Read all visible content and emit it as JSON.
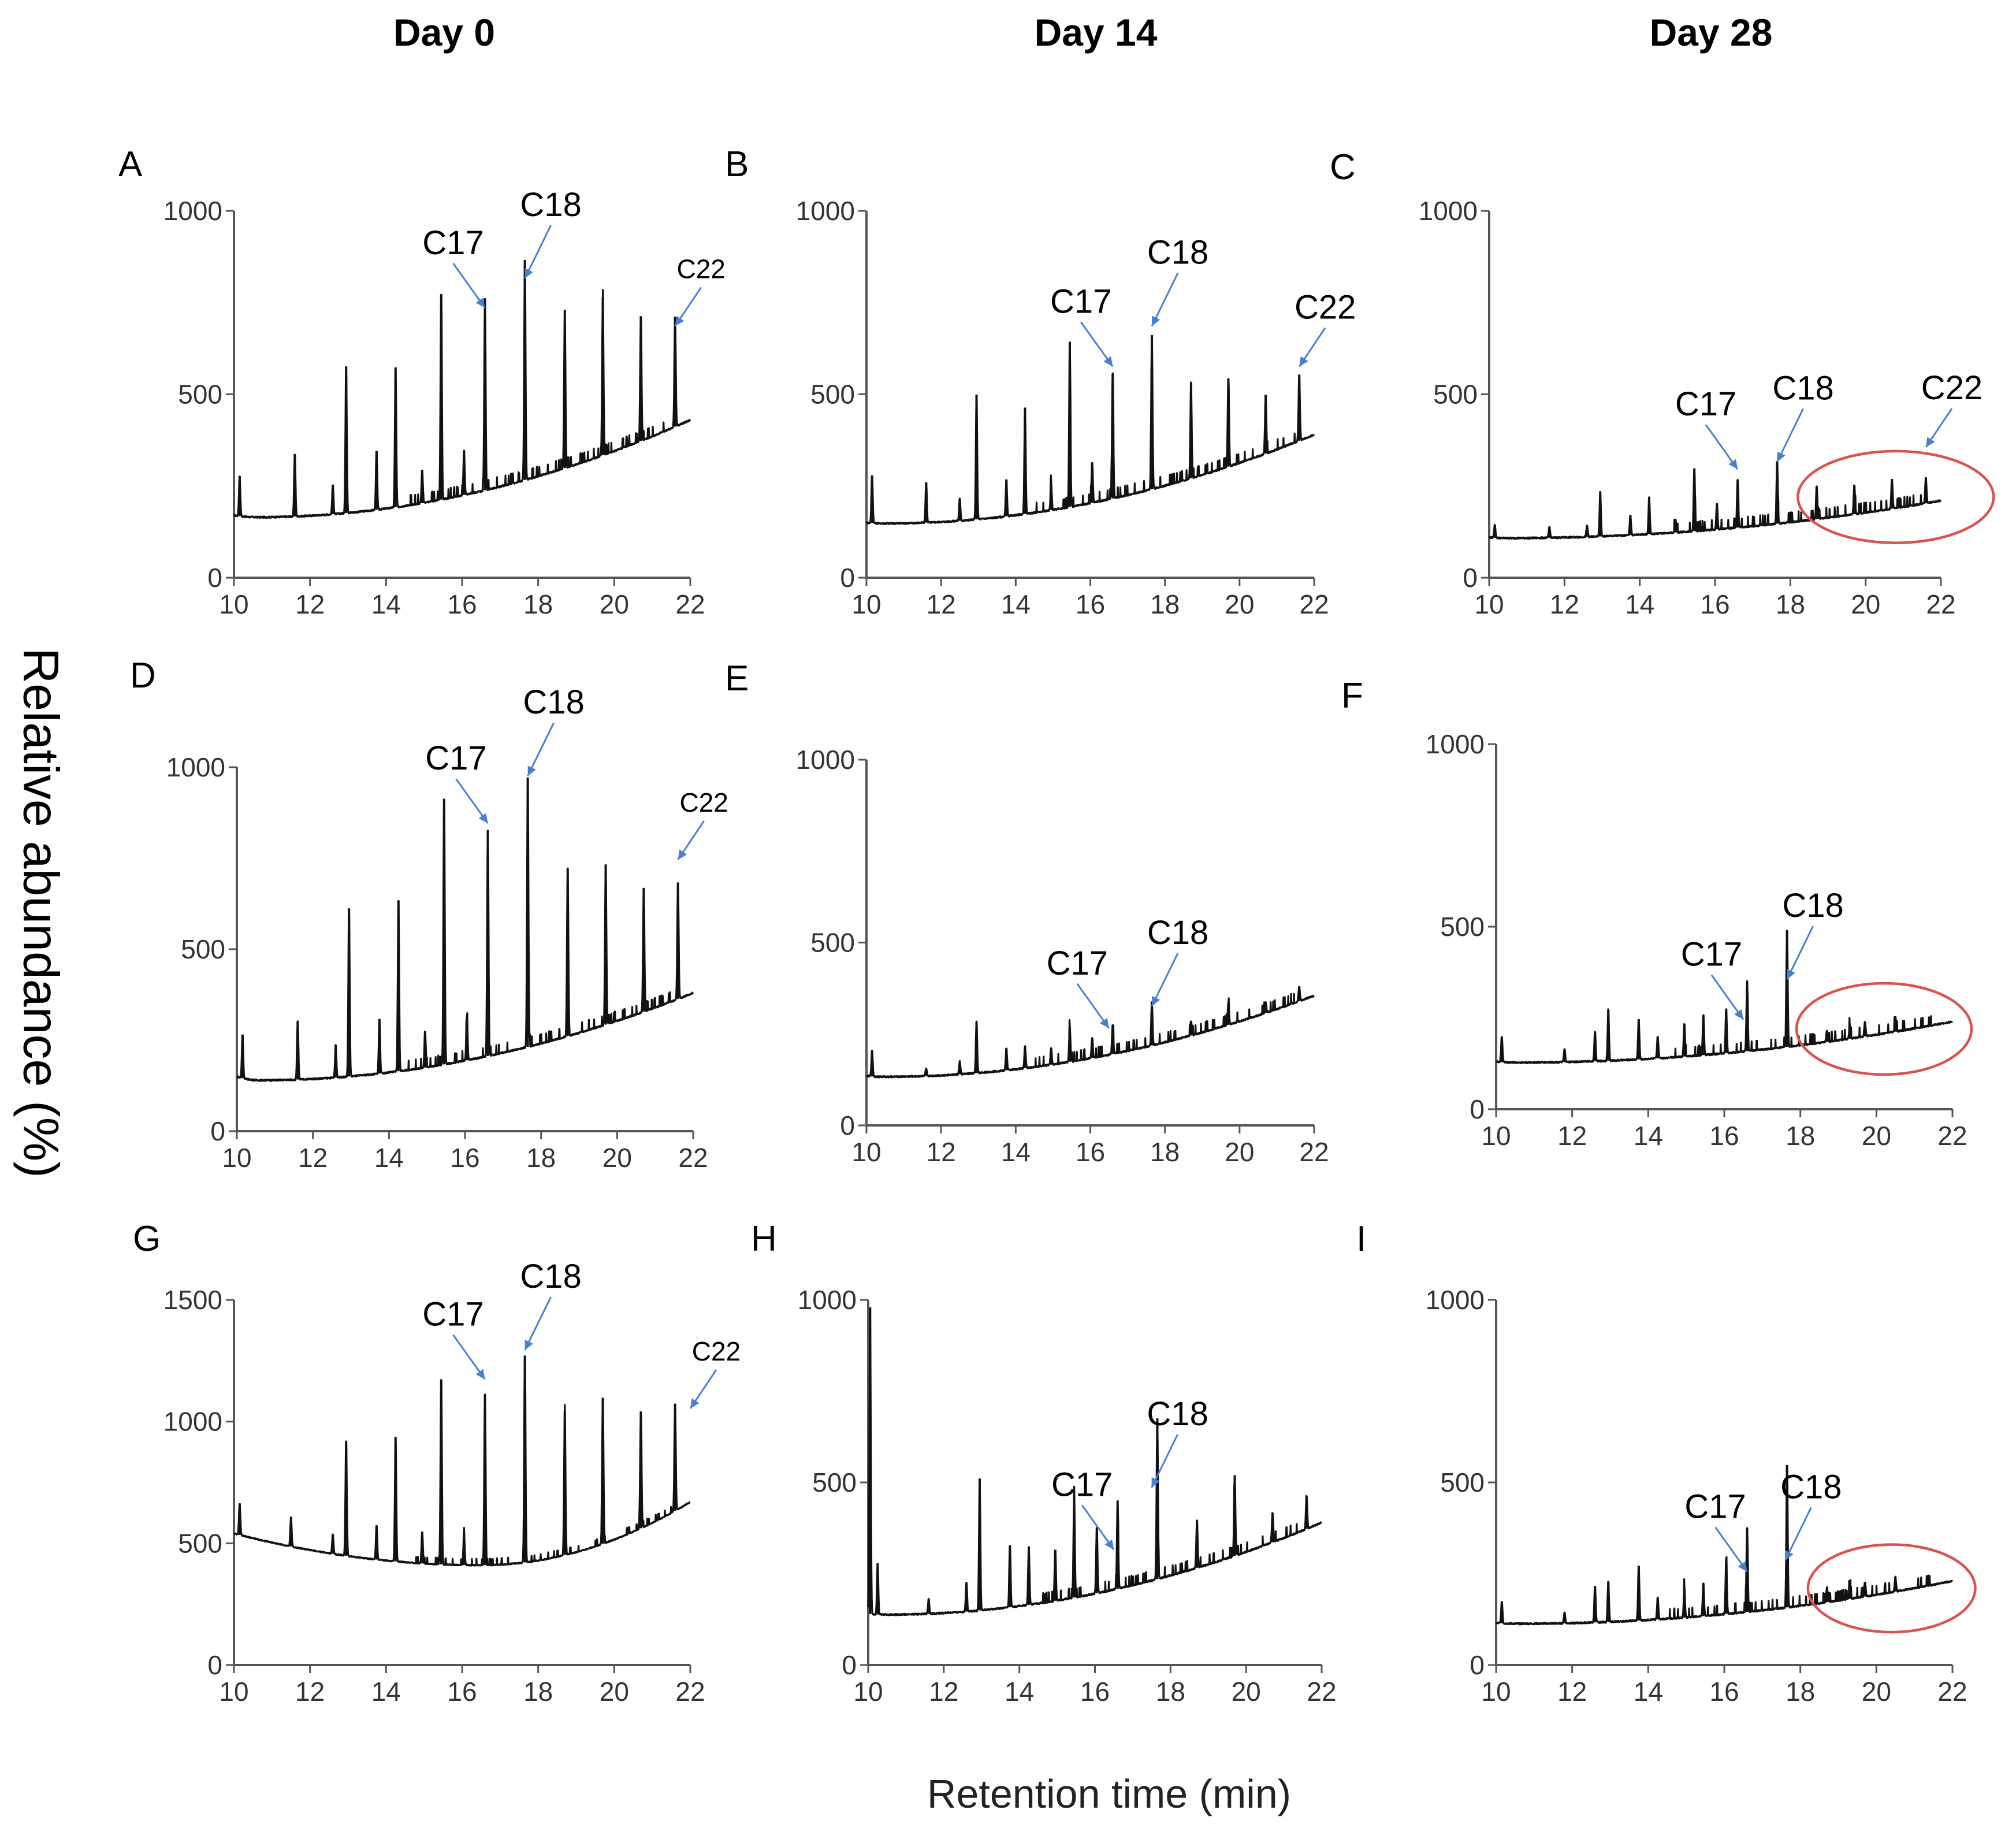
{
  "figure": {
    "column_titles": [
      "Day 0",
      "Day 14",
      "Day 28"
    ],
    "y_axis_label": "Relative abundance (%)",
    "x_axis_label": "Retention time (min)"
  },
  "colors": {
    "trace": "#111111",
    "annotation_arrow": "#4a7fd0",
    "highlight_ellipse": "#d9534f",
    "axis": "#555555"
  },
  "chart_data": [
    {
      "panel": "A",
      "type": "line",
      "xlim": [
        10,
        22
      ],
      "xticks": [
        10,
        12,
        14,
        16,
        18,
        20,
        22
      ],
      "ylim": [
        0,
        1000
      ],
      "yticks": [
        0,
        500,
        1000
      ],
      "baseline": {
        "start": 170,
        "min": 165,
        "min_x": 10.6,
        "end": 430
      },
      "peaks": [
        [
          10.15,
          110
        ],
        [
          11.6,
          170
        ],
        [
          12.6,
          80
        ],
        [
          12.95,
          400
        ],
        [
          13.75,
          160
        ],
        [
          14.25,
          380
        ],
        [
          14.95,
          90
        ],
        [
          15.45,
          560
        ],
        [
          16.05,
          120
        ],
        [
          16.6,
          520
        ],
        [
          17.65,
          600
        ],
        [
          18.7,
          430
        ],
        [
          19.7,
          430
        ],
        [
          20.7,
          340
        ],
        [
          21.6,
          300
        ]
      ],
      "annotations": [
        {
          "label": "C17",
          "x": 16.6,
          "y": 720
        },
        {
          "label": "C18",
          "x": 17.65,
          "y": 800
        },
        {
          "label": "C22",
          "x": 21.6,
          "y": 670
        }
      ],
      "ellipse": null
    },
    {
      "panel": "B",
      "type": "line",
      "xlim": [
        10,
        22
      ],
      "xticks": [
        10,
        12,
        14,
        16,
        18,
        20,
        22
      ],
      "ylim": [
        0,
        1000
      ],
      "yticks": [
        0,
        500,
        1000
      ],
      "baseline": {
        "start": 150,
        "min": 148,
        "min_x": 10.5,
        "end": 390
      },
      "peaks": [
        [
          10.15,
          130
        ],
        [
          11.6,
          110
        ],
        [
          12.5,
          60
        ],
        [
          12.95,
          340
        ],
        [
          13.75,
          100
        ],
        [
          14.25,
          290
        ],
        [
          14.95,
          70
        ],
        [
          15.45,
          450
        ],
        [
          16.05,
          110
        ],
        [
          16.6,
          340
        ],
        [
          17.65,
          420
        ],
        [
          18.7,
          260
        ],
        [
          19.7,
          240
        ],
        [
          20.7,
          160
        ],
        [
          21.6,
          180
        ]
      ],
      "annotations": [
        {
          "label": "C17",
          "x": 16.6,
          "y": 560
        },
        {
          "label": "C18",
          "x": 17.65,
          "y": 670
        },
        {
          "label": "C22",
          "x": 21.6,
          "y": 560
        }
      ],
      "ellipse": null
    },
    {
      "panel": "C",
      "type": "line",
      "xlim": [
        10,
        22
      ],
      "xticks": [
        10,
        12,
        14,
        16,
        18,
        20,
        22
      ],
      "ylim": [
        0,
        1000
      ],
      "yticks": [
        0,
        500,
        1000
      ],
      "baseline": {
        "start": 110,
        "min": 108,
        "min_x": 10.5,
        "end": 210
      },
      "peaks": [
        [
          10.15,
          35
        ],
        [
          11.6,
          30
        ],
        [
          12.6,
          30
        ],
        [
          12.95,
          120
        ],
        [
          13.75,
          55
        ],
        [
          14.25,
          100
        ],
        [
          14.95,
          35
        ],
        [
          15.45,
          170
        ],
        [
          16.05,
          70
        ],
        [
          16.6,
          130
        ],
        [
          17.65,
          170
        ],
        [
          18.7,
          90
        ],
        [
          19.7,
          80
        ],
        [
          20.7,
          80
        ],
        [
          21.6,
          70
        ]
      ],
      "annotations": [
        {
          "label": "C17",
          "x": 16.6,
          "y": 280
        },
        {
          "label": "C18",
          "x": 17.65,
          "y": 300
        },
        {
          "label": "C22",
          "x": 21.6,
          "y": 340
        }
      ],
      "ellipse": {
        "cx": 20.8,
        "cy": 220,
        "rx": 2.6,
        "ry": 125
      }
    },
    {
      "panel": "D",
      "type": "line",
      "xlim": [
        10,
        22
      ],
      "xticks": [
        10,
        12,
        14,
        16,
        18,
        20,
        22
      ],
      "ylim": [
        0,
        1000
      ],
      "yticks": [
        0,
        500,
        1000
      ],
      "baseline": {
        "start": 150,
        "min": 140,
        "min_x": 10.6,
        "end": 380
      },
      "peaks": [
        [
          10.15,
          120
        ],
        [
          11.6,
          160
        ],
        [
          12.6,
          90
        ],
        [
          12.95,
          460
        ],
        [
          13.75,
          150
        ],
        [
          14.25,
          470
        ],
        [
          14.95,
          100
        ],
        [
          15.45,
          730
        ],
        [
          16.05,
          120
        ],
        [
          16.6,
          620
        ],
        [
          17.65,
          740
        ],
        [
          18.7,
          460
        ],
        [
          19.7,
          440
        ],
        [
          20.7,
          340
        ],
        [
          21.6,
          320
        ]
      ],
      "annotations": [
        {
          "label": "C17",
          "x": 16.6,
          "y": 830
        },
        {
          "label": "C18",
          "x": 17.65,
          "y": 960
        },
        {
          "label": "C22",
          "x": 21.6,
          "y": 730
        }
      ],
      "ellipse": null
    },
    {
      "panel": "E",
      "type": "line",
      "xlim": [
        10,
        22
      ],
      "xticks": [
        10,
        12,
        14,
        16,
        18,
        20,
        22
      ],
      "ylim": [
        0,
        1000
      ],
      "yticks": [
        0,
        500,
        1000
      ],
      "baseline": {
        "start": 135,
        "min": 133,
        "min_x": 10.5,
        "end": 355
      },
      "peaks": [
        [
          10.15,
          70
        ],
        [
          11.6,
          20
        ],
        [
          12.5,
          35
        ],
        [
          12.95,
          140
        ],
        [
          13.75,
          60
        ],
        [
          14.25,
          60
        ],
        [
          14.95,
          45
        ],
        [
          15.45,
          95
        ],
        [
          16.05,
          55
        ],
        [
          16.6,
          80
        ],
        [
          17.65,
          120
        ],
        [
          18.7,
          40
        ],
        [
          19.7,
          60
        ],
        [
          20.7,
          30
        ],
        [
          21.6,
          40
        ]
      ],
      "annotations": [
        {
          "label": "C17",
          "x": 16.5,
          "y": 250
        },
        {
          "label": "C18",
          "x": 17.65,
          "y": 310
        }
      ],
      "ellipse": null
    },
    {
      "panel": "F",
      "type": "line",
      "xlim": [
        10,
        22
      ],
      "xticks": [
        10,
        12,
        14,
        16,
        18,
        20,
        22
      ],
      "ylim": [
        0,
        1000
      ],
      "yticks": [
        0,
        500,
        1000
      ],
      "baseline": {
        "start": 130,
        "min": 128,
        "min_x": 10.6,
        "end": 240
      },
      "peaks": [
        [
          10.15,
          70
        ],
        [
          11.8,
          35
        ],
        [
          12.6,
          80
        ],
        [
          12.95,
          140
        ],
        [
          13.75,
          110
        ],
        [
          14.25,
          60
        ],
        [
          14.95,
          90
        ],
        [
          15.45,
          110
        ],
        [
          16.05,
          120
        ],
        [
          16.6,
          190
        ],
        [
          17.65,
          320
        ],
        [
          18.7,
          30
        ],
        [
          19.3,
          35
        ],
        [
          19.7,
          40
        ],
        [
          20.5,
          40
        ]
      ],
      "annotations": [
        {
          "label": "C17",
          "x": 16.5,
          "y": 230
        },
        {
          "label": "C18",
          "x": 17.65,
          "y": 340
        }
      ],
      "ellipse": {
        "cx": 20.2,
        "cy": 220,
        "rx": 2.3,
        "ry": 125
      }
    },
    {
      "panel": "G",
      "type": "line",
      "xlim": [
        10,
        22
      ],
      "xticks": [
        10,
        12,
        14,
        16,
        18,
        20,
        22
      ],
      "ylim": [
        0,
        1500
      ],
      "yticks": [
        0,
        500,
        1000,
        1500
      ],
      "baseline": {
        "start": 540,
        "min": 410,
        "min_x": 16.5,
        "end": 670
      },
      "peaks": [
        [
          10.15,
          130
        ],
        [
          11.5,
          120
        ],
        [
          12.6,
          80
        ],
        [
          12.95,
          470
        ],
        [
          13.75,
          140
        ],
        [
          14.25,
          510
        ],
        [
          14.95,
          130
        ],
        [
          15.45,
          760
        ],
        [
          16.05,
          130
        ],
        [
          16.6,
          700
        ],
        [
          17.65,
          850
        ],
        [
          18.7,
          590
        ],
        [
          19.7,
          600
        ],
        [
          20.7,
          480
        ],
        [
          21.6,
          440
        ]
      ],
      "annotations": [
        {
          "label": "C17",
          "x": 16.6,
          "y": 1150
        },
        {
          "label": "C18",
          "x": 17.65,
          "y": 1270
        },
        {
          "label": "C22",
          "x": 22.0,
          "y": 1030
        }
      ],
      "ellipse": null
    },
    {
      "panel": "H",
      "type": "line",
      "xlim": [
        10,
        22
      ],
      "xticks": [
        10,
        12,
        14,
        16,
        18,
        20,
        22
      ],
      "ylim": [
        0,
        1000
      ],
      "yticks": [
        0,
        500,
        1000
      ],
      "baseline": {
        "start": 140,
        "min": 138,
        "min_x": 10.5,
        "end": 390
      },
      "peaks": [
        [
          10.05,
          840
        ],
        [
          10.25,
          140
        ],
        [
          11.6,
          40
        ],
        [
          12.6,
          80
        ],
        [
          12.95,
          360
        ],
        [
          13.75,
          170
        ],
        [
          14.25,
          160
        ],
        [
          14.95,
          140
        ],
        [
          15.45,
          280
        ],
        [
          16.05,
          180
        ],
        [
          16.6,
          240
        ],
        [
          17.65,
          440
        ],
        [
          18.7,
          130
        ],
        [
          19.7,
          220
        ],
        [
          20.7,
          80
        ],
        [
          21.6,
          90
        ]
      ],
      "annotations": [
        {
          "label": "C17",
          "x": 16.5,
          "y": 300
        },
        {
          "label": "C18",
          "x": 17.5,
          "y": 470
        }
      ],
      "ellipse": null
    },
    {
      "panel": "I",
      "type": "line",
      "xlim": [
        10,
        22
      ],
      "xticks": [
        10,
        12,
        14,
        16,
        18,
        20,
        22
      ],
      "ylim": [
        0,
        1000
      ],
      "yticks": [
        0,
        500,
        1000
      ],
      "baseline": {
        "start": 115,
        "min": 113,
        "min_x": 10.6,
        "end": 230
      },
      "peaks": [
        [
          10.15,
          60
        ],
        [
          11.8,
          30
        ],
        [
          12.6,
          100
        ],
        [
          12.95,
          110
        ],
        [
          13.75,
          150
        ],
        [
          14.25,
          60
        ],
        [
          14.95,
          80
        ],
        [
          15.45,
          90
        ],
        [
          16.05,
          150
        ],
        [
          16.6,
          230
        ],
        [
          17.65,
          390
        ],
        [
          18.7,
          40
        ],
        [
          19.3,
          40
        ],
        [
          19.7,
          40
        ],
        [
          20.5,
          40
        ]
      ],
      "annotations": [
        {
          "label": "C17",
          "x": 16.6,
          "y": 240
        },
        {
          "label": "C18",
          "x": 17.6,
          "y": 270
        }
      ],
      "ellipse": {
        "cx": 20.4,
        "cy": 210,
        "rx": 2.2,
        "ry": 120
      }
    }
  ]
}
